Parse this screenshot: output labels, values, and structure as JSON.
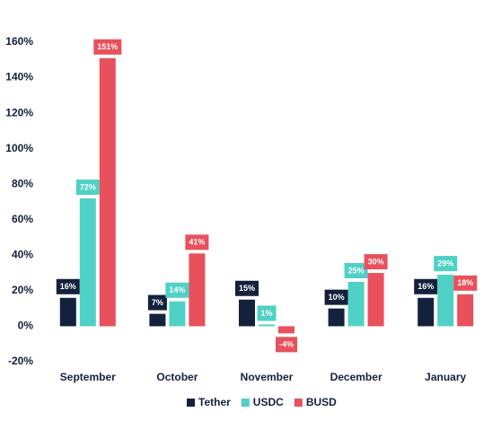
{
  "chart_data": {
    "type": "bar",
    "categories": [
      "September",
      "October",
      "November",
      "December",
      "January"
    ],
    "series": [
      {
        "name": "Tether",
        "color": "#14213d",
        "values": [
          16,
          7,
          15,
          10,
          16
        ],
        "value_labels": [
          "16%",
          "7%",
          "15%",
          "10%",
          "16%"
        ]
      },
      {
        "name": "USDC",
        "color": "#4fd1c5",
        "values": [
          72,
          14,
          1,
          25,
          29
        ],
        "value_labels": [
          "72%",
          "14%",
          "1%",
          "25%",
          "29%"
        ]
      },
      {
        "name": "BUSD",
        "color": "#e8505b",
        "values": [
          151,
          41,
          -4,
          30,
          18
        ],
        "value_labels": [
          "151%",
          "41%",
          "-4%",
          "30%",
          "18%"
        ]
      }
    ],
    "ylim": [
      -20,
      160
    ],
    "yticks": [
      {
        "value": -20,
        "label": "-20%"
      },
      {
        "value": 0,
        "label": "0%"
      },
      {
        "value": 20,
        "label": "20%"
      },
      {
        "value": 40,
        "label": "40%"
      },
      {
        "value": 60,
        "label": "60%"
      },
      {
        "value": 80,
        "label": "80%"
      },
      {
        "value": 100,
        "label": "100%"
      },
      {
        "value": 120,
        "label": "120%"
      },
      {
        "value": 140,
        "label": "140%"
      },
      {
        "value": 160,
        "label": "160%"
      }
    ],
    "grid": false,
    "legend": "bottom"
  }
}
